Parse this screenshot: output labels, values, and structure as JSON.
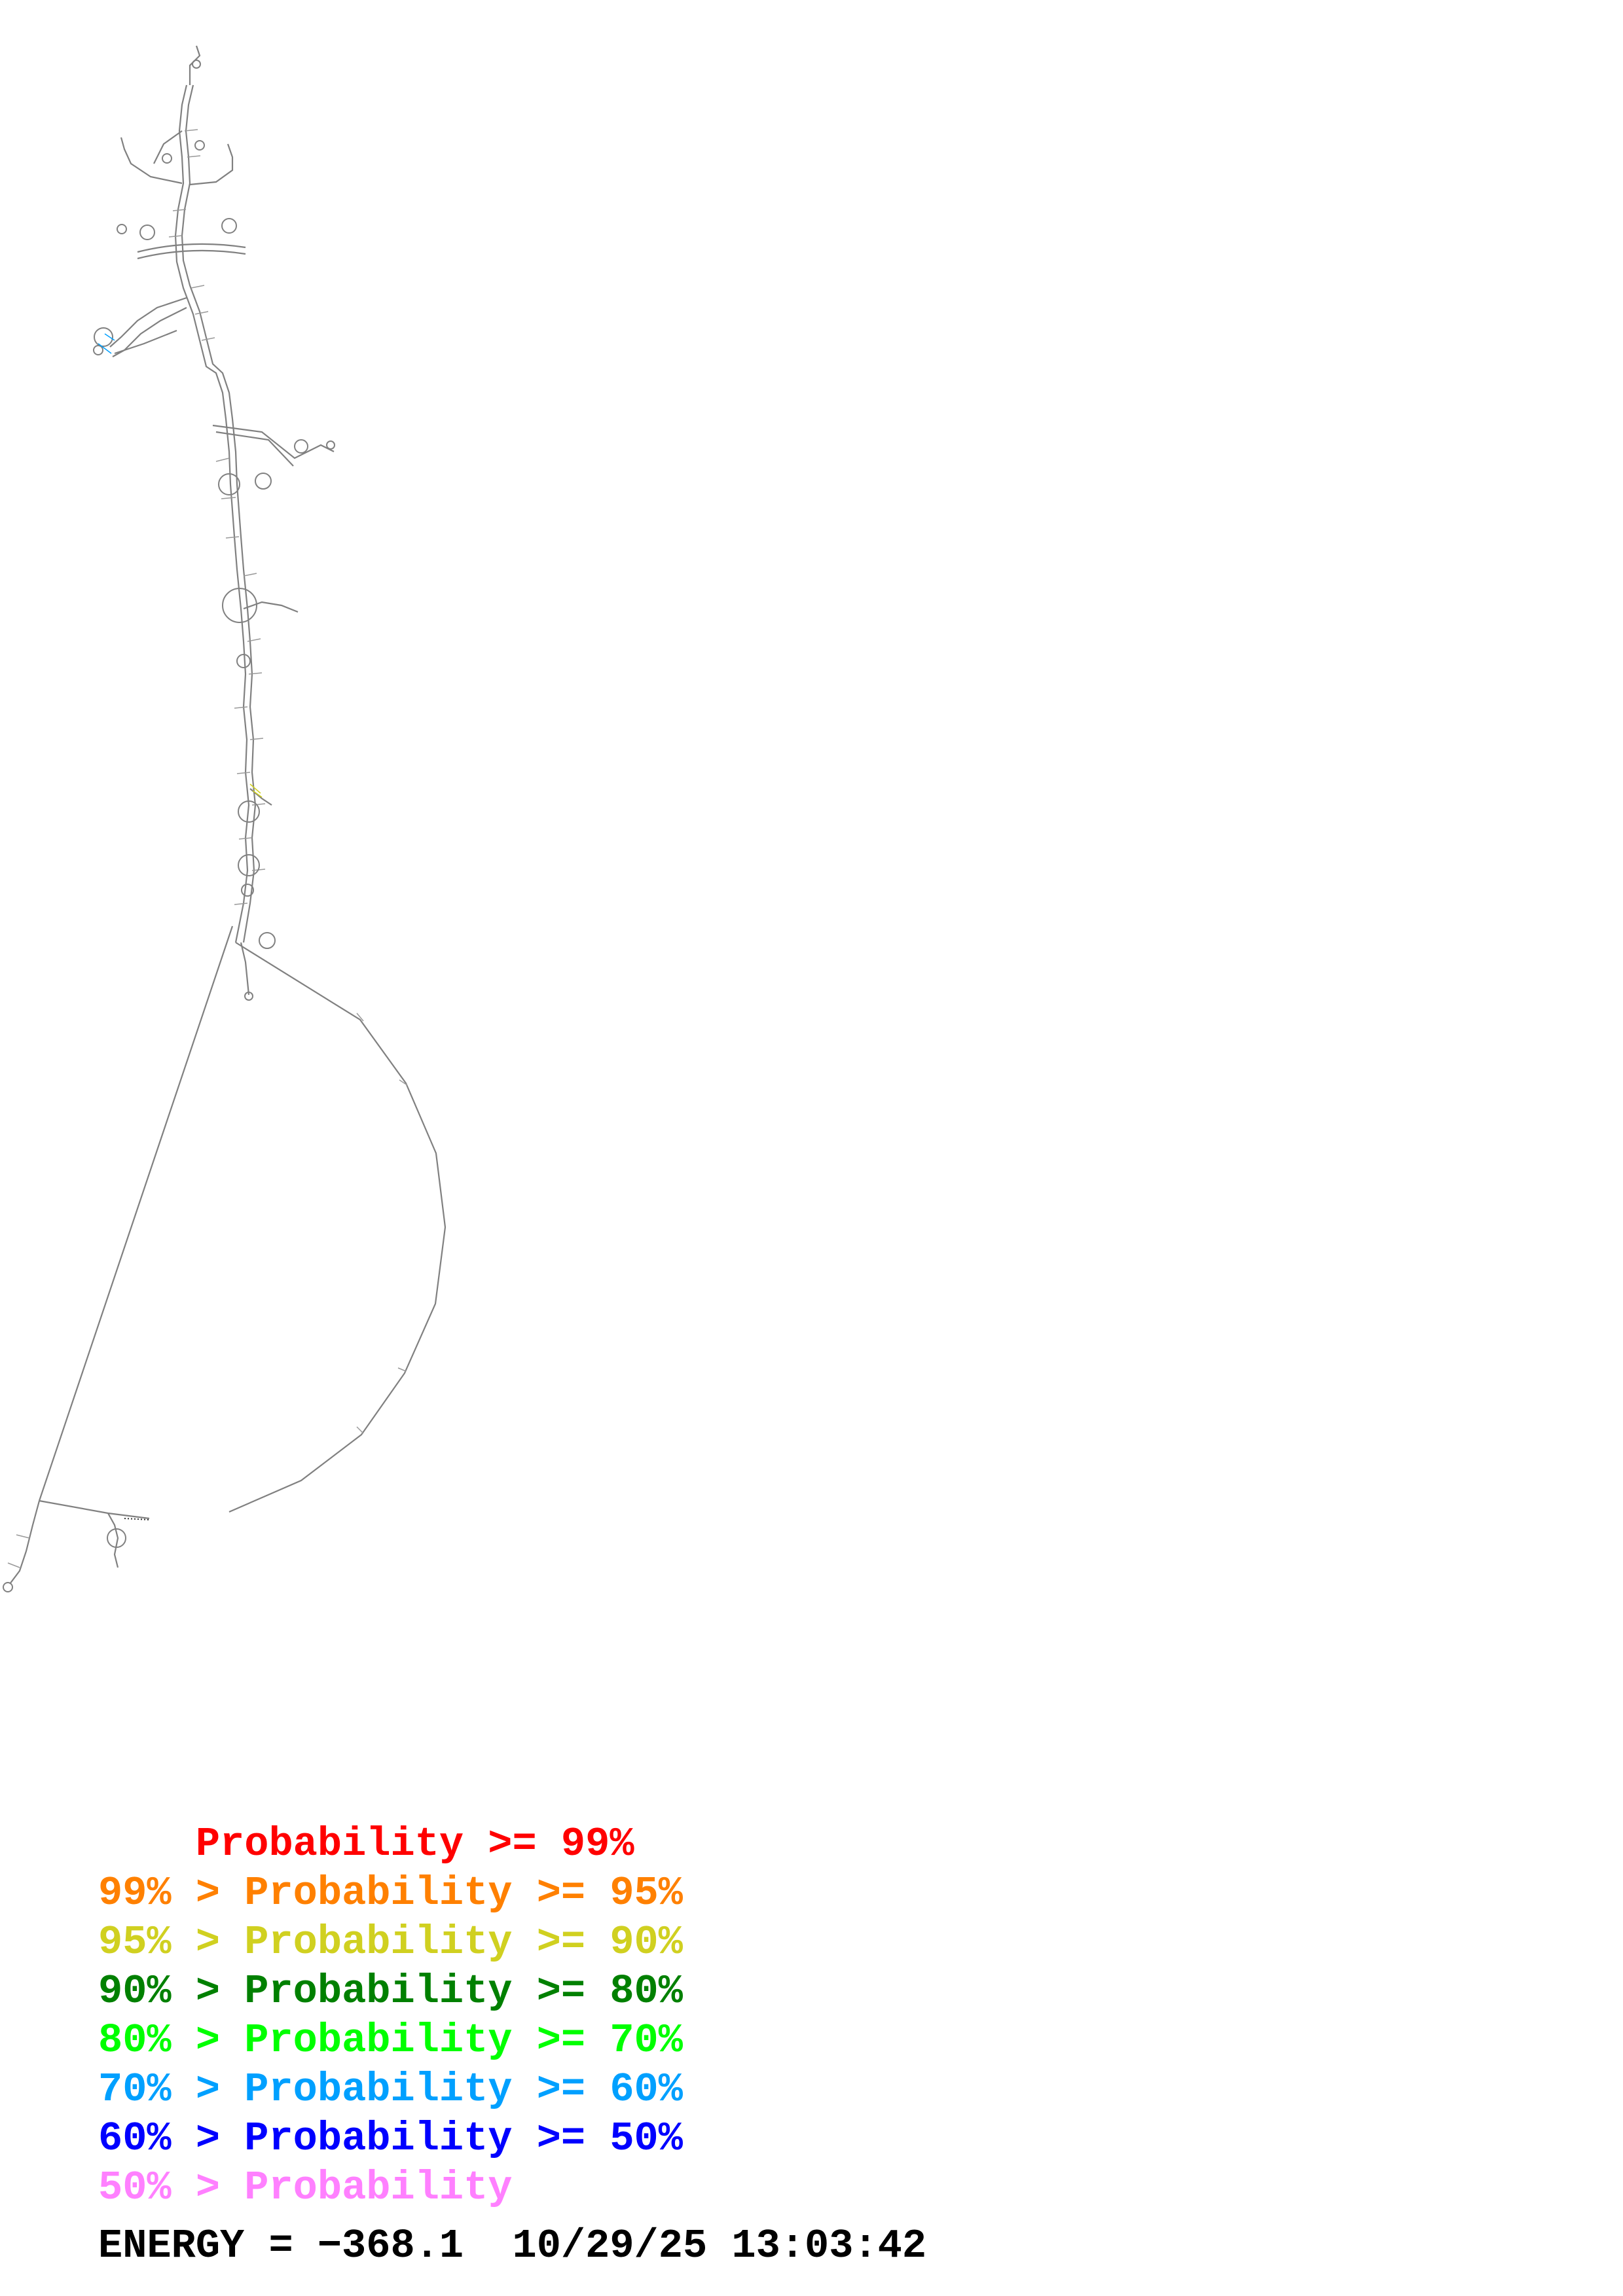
{
  "legend": [
    {
      "prefix": "    ",
      "label": "Probability >= 99%",
      "color": "#ff0000"
    },
    {
      "prefix": "99% > ",
      "label": "Probability >= 95%",
      "color": "#ff8000"
    },
    {
      "prefix": "95% > ",
      "label": "Probability >= 90%",
      "color": "#d0d020"
    },
    {
      "prefix": "90% > ",
      "label": "Probability >= 80%",
      "color": "#008000"
    },
    {
      "prefix": "80% > ",
      "label": "Probability >= 70%",
      "color": "#00ff00"
    },
    {
      "prefix": "70% > ",
      "label": "Probability >= 60%",
      "color": "#00a0ff"
    },
    {
      "prefix": "60% > ",
      "label": "Probability >= 50%",
      "color": "#0000ff"
    },
    {
      "prefix": "50% > ",
      "label": "Probability",
      "color": "#ff80ff"
    }
  ],
  "footer": {
    "energy": "ENERGY = −368.1",
    "timestamp": "10/29/25 13:03:42"
  },
  "colors": {
    "backbone": "#777777",
    "pair": "#999999"
  }
}
